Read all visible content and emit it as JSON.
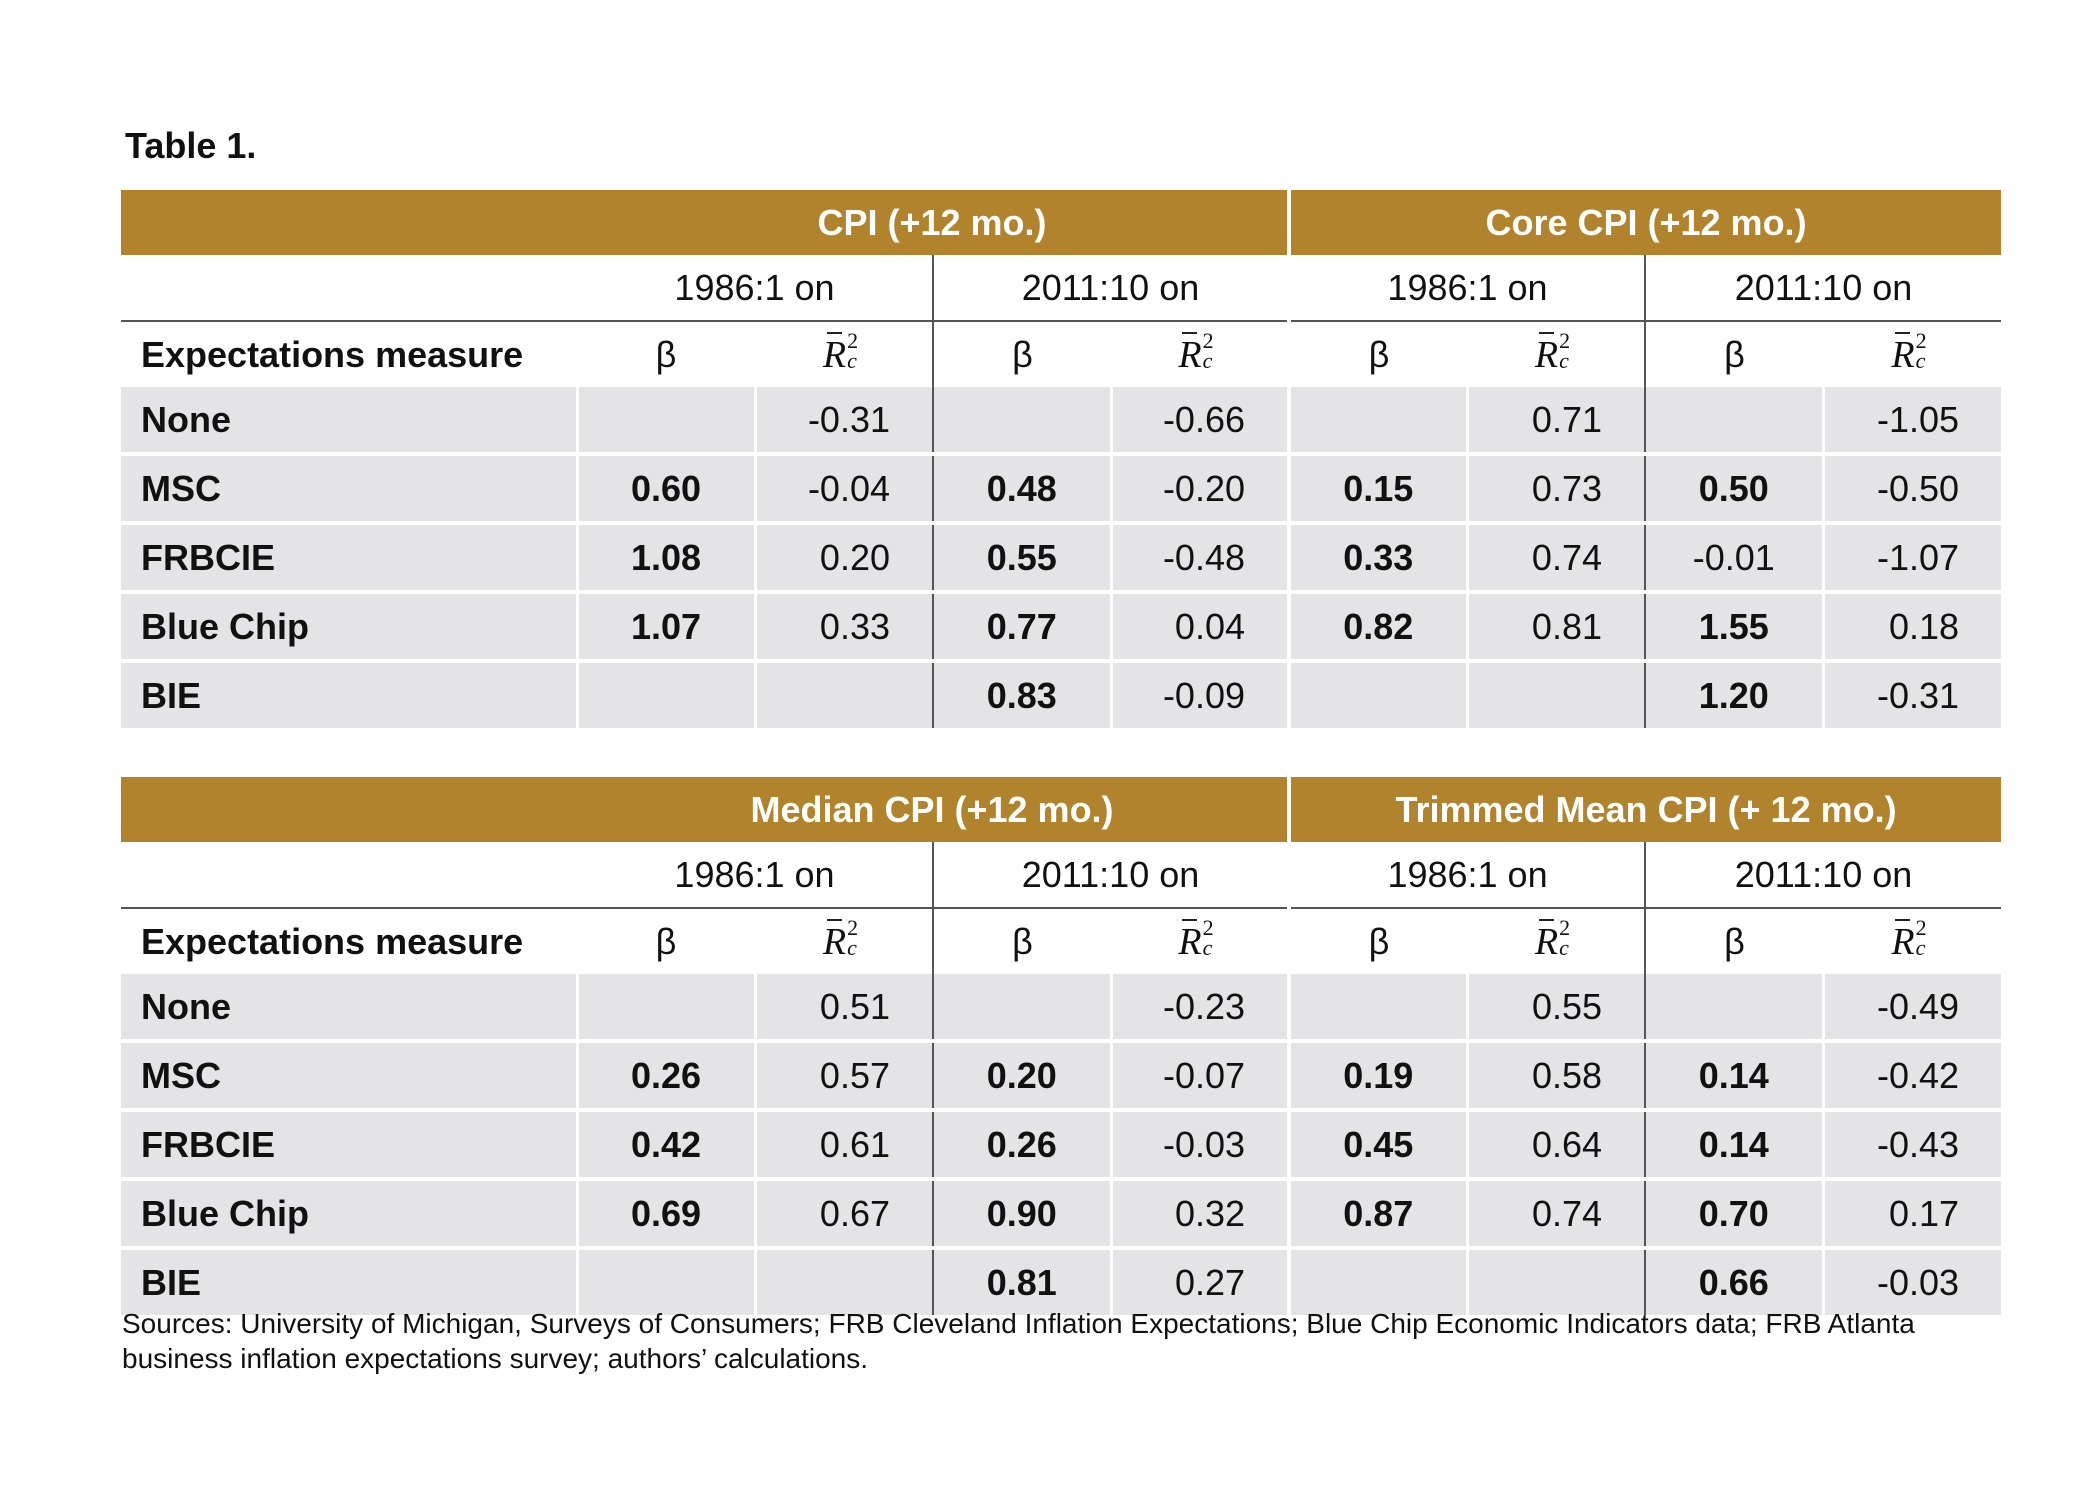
{
  "title": "Table 1.",
  "column_header": {
    "measure": "Expectations measure",
    "beta": "β"
  },
  "tables": [
    {
      "groups": [
        "CPI (+12 mo.)",
        "Core CPI (+12 mo.)"
      ],
      "periods": [
        "1986:1 on",
        "2011:10 on",
        "1986:1 on",
        "2011:10 on"
      ],
      "rows": [
        {
          "measure": "None",
          "cells": [
            [
              "",
              "-0.31"
            ],
            [
              "",
              "-0.66"
            ],
            [
              "",
              "0.71"
            ],
            [
              "",
              "-1.05"
            ]
          ]
        },
        {
          "measure": "MSC",
          "cells": [
            [
              "0.60",
              "-0.04"
            ],
            [
              "0.48",
              "-0.20"
            ],
            [
              "0.15",
              "0.73"
            ],
            [
              "0.50",
              "-0.50"
            ]
          ]
        },
        {
          "measure": "FRBCIE",
          "cells": [
            [
              "1.08",
              "0.20"
            ],
            [
              "0.55",
              "-0.48"
            ],
            [
              "0.33",
              "0.74"
            ],
            [
              "-0.01",
              "-1.07"
            ]
          ]
        },
        {
          "measure": "Blue Chip",
          "cells": [
            [
              "1.07",
              "0.33"
            ],
            [
              "0.77",
              "0.04"
            ],
            [
              "0.82",
              "0.81"
            ],
            [
              "1.55",
              "0.18"
            ]
          ]
        },
        {
          "measure": "BIE",
          "cells": [
            [
              "",
              ""
            ],
            [
              "0.83",
              "-0.09"
            ],
            [
              "",
              ""
            ],
            [
              "1.20",
              "-0.31"
            ]
          ]
        }
      ]
    },
    {
      "groups": [
        "Median CPI (+12 mo.)",
        "Trimmed Mean CPI (+ 12 mo.)"
      ],
      "periods": [
        "1986:1 on",
        "2011:10 on",
        "1986:1 on",
        "2011:10 on"
      ],
      "rows": [
        {
          "measure": "None",
          "cells": [
            [
              "",
              "0.51"
            ],
            [
              "",
              "-0.23"
            ],
            [
              "",
              "0.55"
            ],
            [
              "",
              "-0.49"
            ]
          ]
        },
        {
          "measure": "MSC",
          "cells": [
            [
              "0.26",
              "0.57"
            ],
            [
              "0.20",
              "-0.07"
            ],
            [
              "0.19",
              "0.58"
            ],
            [
              "0.14",
              "-0.42"
            ]
          ]
        },
        {
          "measure": "FRBCIE",
          "cells": [
            [
              "0.42",
              "0.61"
            ],
            [
              "0.26",
              "-0.03"
            ],
            [
              "0.45",
              "0.64"
            ],
            [
              "0.14",
              "-0.43"
            ]
          ]
        },
        {
          "measure": "Blue Chip",
          "cells": [
            [
              "0.69",
              "0.67"
            ],
            [
              "0.90",
              "0.32"
            ],
            [
              "0.87",
              "0.74"
            ],
            [
              "0.70",
              "0.17"
            ]
          ]
        },
        {
          "measure": "BIE",
          "cells": [
            [
              "",
              ""
            ],
            [
              "0.81",
              "0.27"
            ],
            [
              "",
              ""
            ],
            [
              "0.66",
              "-0.03"
            ]
          ]
        }
      ]
    }
  ],
  "plain_beta_values": [
    "-0.01"
  ],
  "sources": "Sources: University of Michigan, Surveys of Consumers; FRB Cleveland Inflation Expectations; Blue Chip Economic Indicators data; FRB Atlanta business inflation expectations survey; authors’ calculations.",
  "colors": {
    "header_band": "#b0832c",
    "row_fill": "#e4e4e6",
    "text": "#111111"
  }
}
